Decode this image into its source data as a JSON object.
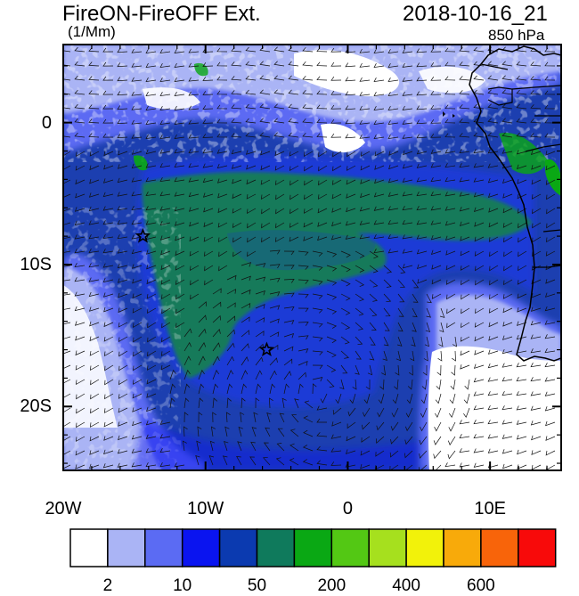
{
  "header": {
    "title": "FireON-FireOFF Ext.",
    "units": "(1/Mm)",
    "datetime": "2018-10-16_21",
    "level": "850 hPa"
  },
  "map": {
    "projection": "lat-lon",
    "lon_range": [
      -20,
      15
    ],
    "lat_range": [
      -24.5,
      5.5
    ],
    "lat_ticks": [
      {
        "value": 0,
        "label": "0"
      },
      {
        "value": -10,
        "label": "10S"
      },
      {
        "value": -20,
        "label": "20S"
      }
    ],
    "lon_ticks": [
      {
        "value": -20,
        "label": "20W"
      },
      {
        "value": -10,
        "label": "10W"
      },
      {
        "value": 0,
        "label": "0"
      },
      {
        "value": 10,
        "label": "10E"
      }
    ],
    "markers": [
      {
        "name": "star-marker",
        "lon": -14.4,
        "lat": -8.0
      },
      {
        "name": "star-marker",
        "lon": -5.7,
        "lat": -16.0
      }
    ],
    "field_description_colors": {
      "background_low": "#1c3fb0",
      "plume": "#127a5a",
      "clouds": "#ffffff"
    }
  },
  "colorbar": {
    "colors": [
      "#ffffff",
      "#aab4f5",
      "#5b6bf3",
      "#0a14f0",
      "#0b3ab0",
      "#0f7a5c",
      "#0aa814",
      "#53c814",
      "#a6e01e",
      "#f2f20a",
      "#f8aa0a",
      "#f8640a",
      "#f80a0a"
    ],
    "labels": [
      {
        "text": "2",
        "after_box": 1
      },
      {
        "text": "10",
        "after_box": 3
      },
      {
        "text": "50",
        "after_box": 5
      },
      {
        "text": "200",
        "after_box": 7
      },
      {
        "text": "400",
        "after_box": 9
      },
      {
        "text": "600",
        "after_box": 11
      }
    ]
  }
}
